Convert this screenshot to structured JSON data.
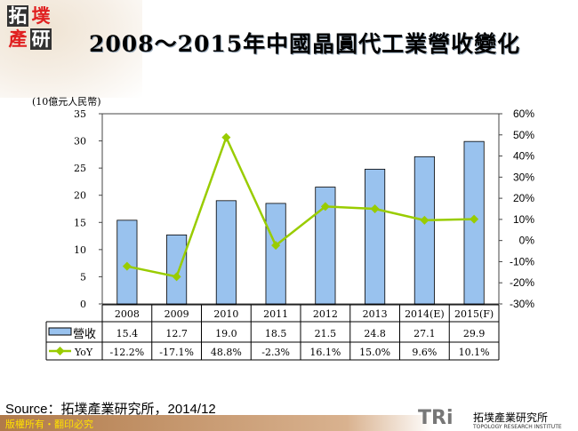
{
  "logo": {
    "chars": [
      "拓",
      "墣",
      "產",
      "研"
    ]
  },
  "title": "2008～2015年中國晶圓代工業營收變化",
  "unit_label": "(10億元人民幣)",
  "chart_data": {
    "type": "bar+line",
    "title": "2008～2015年中國晶圓代工業營收變化",
    "ylabel": "(10億元人民幣)",
    "categories": [
      "2008",
      "2009",
      "2010",
      "2011",
      "2012",
      "2013",
      "2014(E)",
      "2015(F)"
    ],
    "series": [
      {
        "name": "營收",
        "type": "bar",
        "axis": "left",
        "color": "#99c2ee",
        "values": [
          15.4,
          12.7,
          19.0,
          18.5,
          21.5,
          24.8,
          27.1,
          29.9
        ],
        "labels": [
          "15.4",
          "12.7",
          "19.0",
          "18.5",
          "21.5",
          "24.8",
          "27.1",
          "29.9"
        ]
      },
      {
        "name": "YoY",
        "type": "line",
        "axis": "right",
        "color": "#99cc00",
        "values": [
          -12.2,
          -17.1,
          48.8,
          -2.3,
          16.1,
          15.0,
          9.6,
          10.1
        ],
        "labels": [
          "-12.2%",
          "-17.1%",
          "48.8%",
          "-2.3%",
          "16.1%",
          "15.0%",
          "9.6%",
          "10.1%"
        ]
      }
    ],
    "y_left": {
      "range": [
        0,
        35
      ],
      "ticks": [
        "0",
        "5",
        "10",
        "15",
        "20",
        "25",
        "30",
        "35"
      ]
    },
    "y_right": {
      "range": [
        -30,
        60
      ],
      "ticks": [
        "-30%",
        "-20%",
        "-10%",
        "0%",
        "10%",
        "20%",
        "30%",
        "40%",
        "50%",
        "60%"
      ]
    },
    "grid": false,
    "legend": "data-table"
  },
  "source": "Source：拓墣產業研究所，2014/12",
  "footer": "版權所有・翻印必究",
  "brand": {
    "mark": "TRi",
    "name_cn": "拓墣產業研究所",
    "name_en": "TOPOLOGY RESEARCH INSTITUTE"
  }
}
